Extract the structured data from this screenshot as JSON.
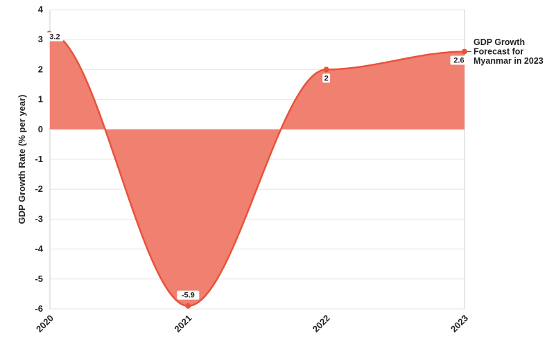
{
  "chart_data": {
    "type": "area",
    "title": "",
    "xlabel": "",
    "ylabel": "GDP Growth Rate (% per year)",
    "x": [
      "2020",
      "2021",
      "2022",
      "2023"
    ],
    "series": [
      {
        "name": "GDP Growth Forecast for Myanmar in 2023",
        "values": [
          3.2,
          -5.9,
          2,
          2.6
        ],
        "data_labels": [
          "3.2",
          "-5.9",
          "2",
          "2.6"
        ]
      }
    ],
    "ylim": [
      -6,
      4
    ],
    "yticks": [
      "4",
      "3",
      "2",
      "1",
      "0",
      "-1",
      "-2",
      "-3",
      "-4",
      "-5",
      "-6"
    ],
    "grid": true,
    "legend": "none",
    "colors": {
      "fill": "#f08070",
      "line": "#e8523a",
      "grid": "#e6e6e6",
      "axis": "#cccccc"
    }
  }
}
